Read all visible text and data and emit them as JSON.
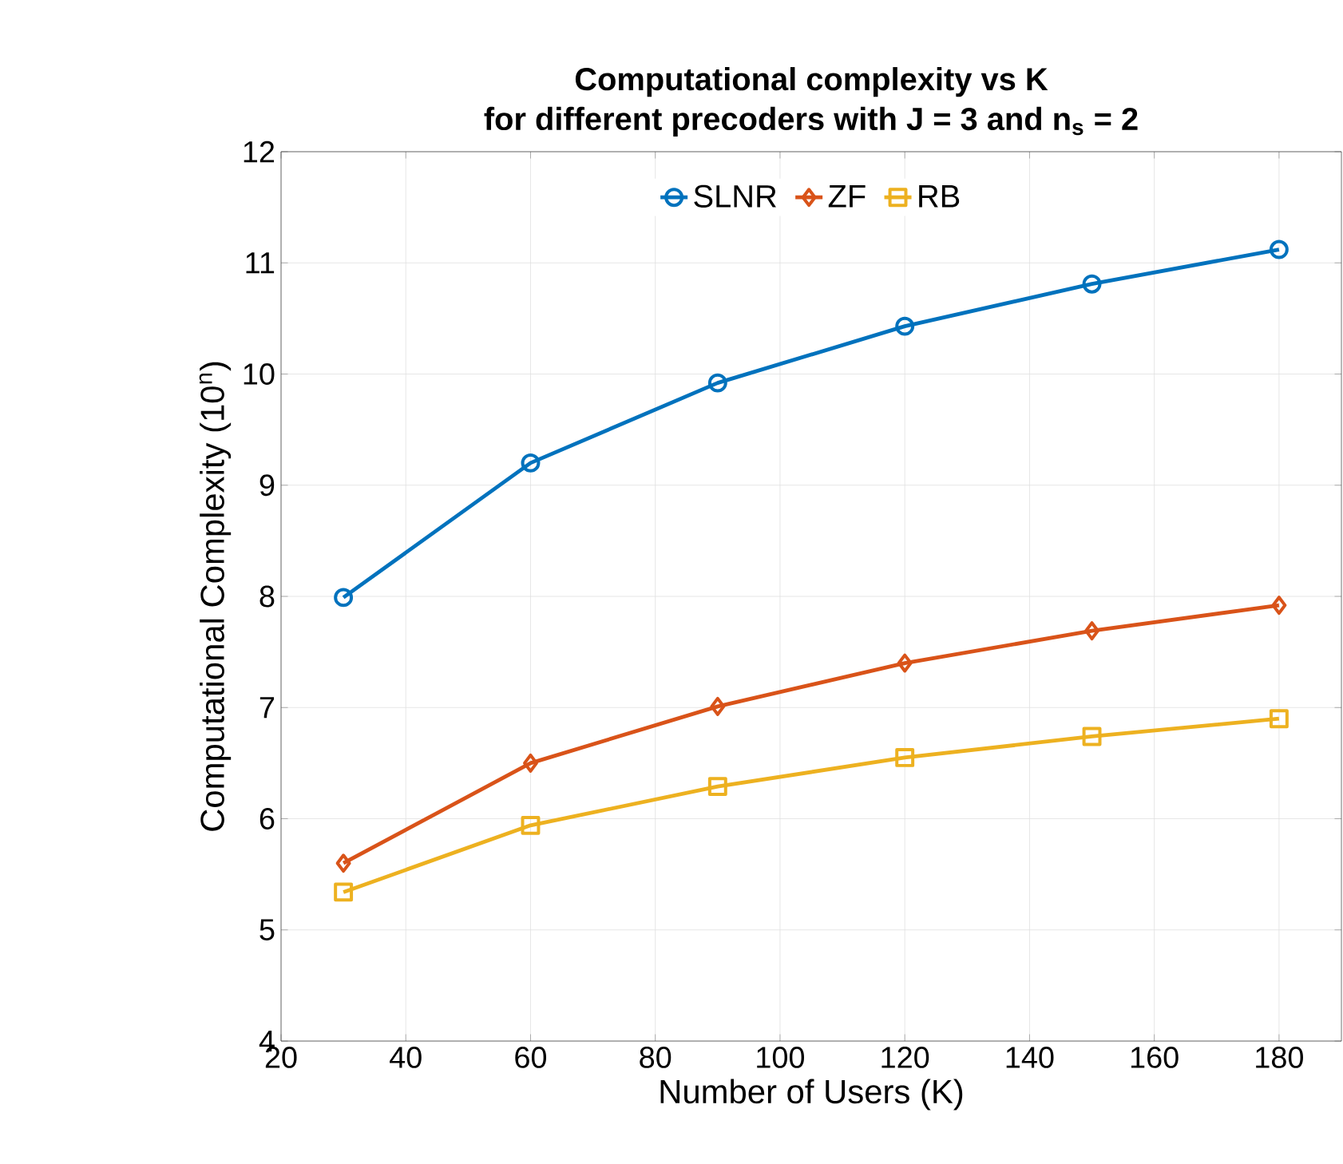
{
  "chart_data": {
    "type": "line",
    "title": "**Computational complexity vs K**",
    "subtitle": "**for different precoders with J = 3 and n$_{s}$ = 2**",
    "xlabel": "Number of Users (K)",
    "ylabel": "Computational Complexity (10$^{n}$)",
    "x": [
      30,
      60,
      90,
      120,
      150,
      180
    ],
    "series": [
      {
        "name": "SLNR",
        "color": "#0072bd",
        "marker": "circle",
        "values": [
          7.99,
          9.2,
          9.92,
          10.43,
          10.81,
          11.12
        ]
      },
      {
        "name": "ZF",
        "color": "#d95319",
        "marker": "diamond",
        "values": [
          5.6,
          6.5,
          7.01,
          7.4,
          7.69,
          7.92
        ]
      },
      {
        "name": "RB",
        "color": "#edb120",
        "marker": "square",
        "values": [
          5.34,
          5.94,
          6.29,
          6.55,
          6.74,
          6.9
        ]
      }
    ],
    "xlim": [
      20,
      190
    ],
    "xticks": [
      20,
      40,
      60,
      80,
      100,
      120,
      140,
      160,
      180
    ],
    "ylim": [
      4,
      12
    ],
    "yticks": [
      4,
      5,
      6,
      7,
      8,
      9,
      10,
      11,
      12
    ],
    "grid": true,
    "legend": "top",
    "line_style": "solid"
  }
}
